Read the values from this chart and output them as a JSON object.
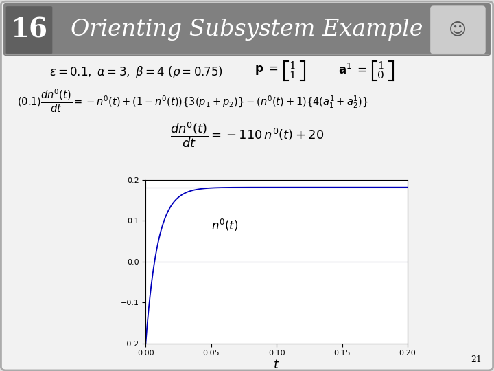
{
  "title": "Orienting Subsystem Example",
  "slide_number": "16",
  "page_number": "21",
  "bg_color": "#e0e0e0",
  "inner_bg": "#f2f2f2",
  "header_bg": "#808080",
  "slide_num_bg": "#606060",
  "plot_xlim": [
    0,
    0.2
  ],
  "plot_ylim": [
    -0.2,
    0.2
  ],
  "plot_xticks": [
    0,
    0.05,
    0.1,
    0.15,
    0.2
  ],
  "plot_yticks": [
    -0.2,
    -0.1,
    0,
    0.1,
    0.2
  ],
  "curve_color": "#0000bb",
  "refline_color": "#bbbbcc",
  "decay_rate": 110,
  "ss_numerator": 20,
  "ss_denominator": 110,
  "initial_value": -0.2,
  "xlabel": "t"
}
